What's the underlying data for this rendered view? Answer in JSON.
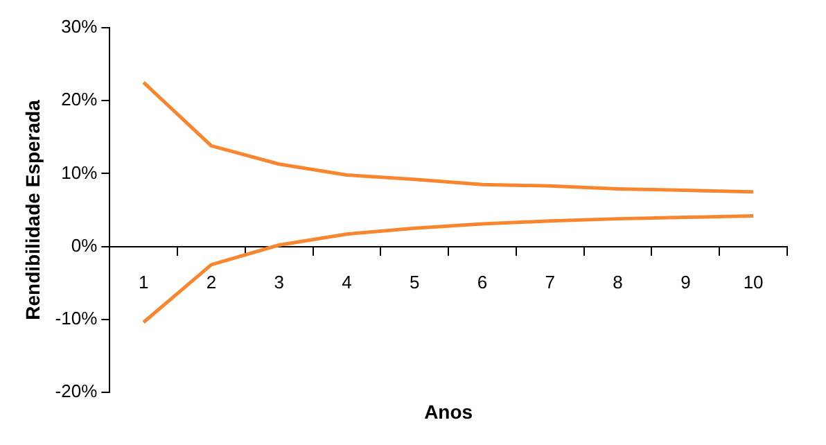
{
  "chart_data": {
    "type": "line",
    "xlabel": "Anos",
    "ylabel": "Rendibilidade Esperada",
    "categories": [
      "1",
      "2",
      "3",
      "4",
      "5",
      "6",
      "7",
      "8",
      "9",
      "10"
    ],
    "series": [
      {
        "color": "#f7862f",
        "values": [
          22.5,
          13.8,
          11.3,
          9.8,
          9.2,
          8.5,
          8.3,
          7.9,
          7.7,
          7.5
        ]
      },
      {
        "color": "#f7862f",
        "values": [
          -10.4,
          -2.5,
          0.2,
          1.7,
          2.5,
          3.1,
          3.5,
          3.8,
          4.0,
          4.2
        ]
      }
    ],
    "ylim": [
      -20,
      30
    ],
    "yticks": [
      {
        "value": -20,
        "label": "-20%"
      },
      {
        "value": -10,
        "label": "-10%"
      },
      {
        "value": 0,
        "label": "0%"
      },
      {
        "value": 10,
        "label": "10%"
      },
      {
        "value": 20,
        "label": "20%"
      },
      {
        "value": 30,
        "label": "30%"
      }
    ],
    "grid": false,
    "legend": false,
    "marker": "none",
    "line_style": "solid"
  }
}
